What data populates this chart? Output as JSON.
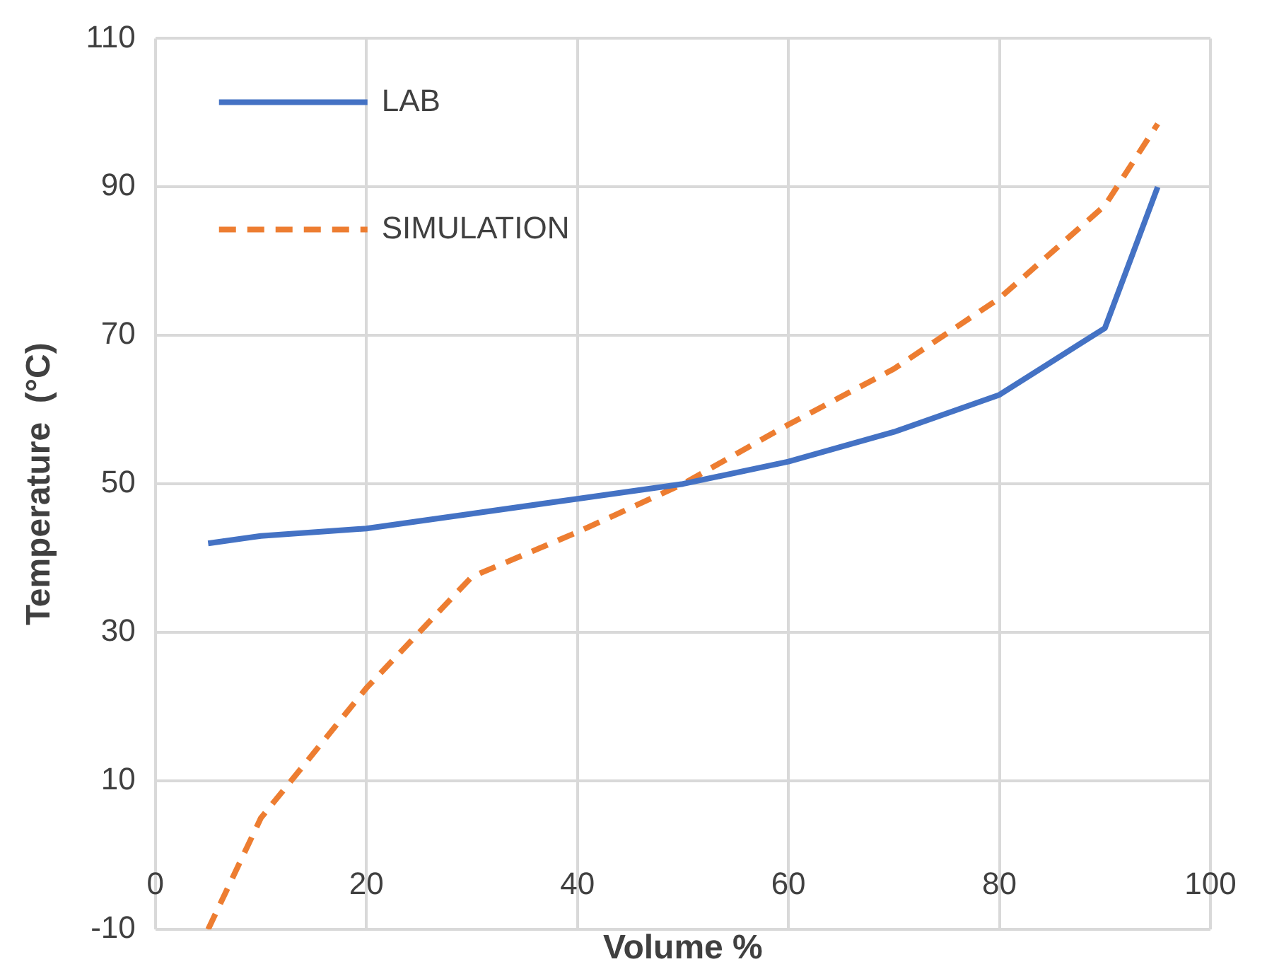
{
  "chart_data": {
    "type": "line",
    "xlabel": "Volume %",
    "ylabel": "Temperature  (°C)",
    "x": [
      5,
      10,
      20,
      30,
      40,
      50,
      60,
      70,
      80,
      90,
      95
    ],
    "series": [
      {
        "name": "LAB",
        "color": "#4472c4",
        "line_style": "solid",
        "values": [
          42,
          43,
          44,
          46,
          48,
          50,
          53,
          57,
          62,
          71,
          90
        ]
      },
      {
        "name": "SIMULATION",
        "color": "#ed7d31",
        "line_style": "dashed",
        "values": [
          -10,
          5,
          22.5,
          37.5,
          43.5,
          50,
          58,
          65.5,
          75,
          87.5,
          98.5
        ]
      }
    ],
    "xlim": [
      0,
      100
    ],
    "xticks": [
      0,
      20,
      40,
      60,
      80,
      100
    ],
    "ylim": [
      -10,
      110
    ],
    "yticks": [
      -10,
      10,
      30,
      50,
      70,
      90,
      110
    ],
    "grid": true,
    "legend": "top left",
    "marker": "none"
  }
}
